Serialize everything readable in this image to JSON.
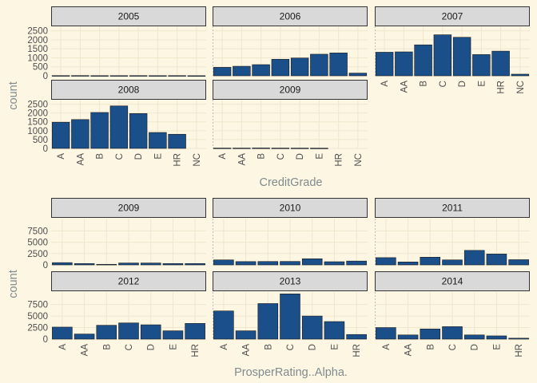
{
  "colors": {
    "background": "#fdf6e3",
    "panel_background": "#fdf6e3",
    "grid": "#efe6cc",
    "strip_fill": "#d9d9d9",
    "strip_border": "#333333",
    "bar_fill": "#1a4f8a",
    "bar_stroke": "#1a1a1a",
    "axis_title": "#7f8b8f",
    "tick_text": "#4d4d4d"
  },
  "chart_data": [
    {
      "type": "bar",
      "facet_layout": "wrap 3 columns",
      "xlabel": "CreditGrade",
      "ylabel": "count",
      "categories": [
        "A",
        "AA",
        "B",
        "C",
        "D",
        "E",
        "HR",
        "NC"
      ],
      "ylim": [
        0,
        2750
      ],
      "yticks": [
        0,
        500,
        1000,
        1500,
        2000,
        2500
      ],
      "grid": true,
      "panels": [
        {
          "label": "2005",
          "values": [
            10,
            12,
            8,
            9,
            10,
            8,
            10,
            5
          ]
        },
        {
          "label": "2006",
          "values": [
            470,
            530,
            620,
            920,
            990,
            1200,
            1270,
            150
          ]
        },
        {
          "label": "2007",
          "values": [
            1310,
            1330,
            1720,
            2280,
            2140,
            1180,
            1370,
            90
          ]
        },
        {
          "label": "2008",
          "values": [
            1480,
            1630,
            2030,
            2400,
            1970,
            900,
            800,
            0
          ]
        },
        {
          "label": "2009",
          "values": [
            20,
            20,
            25,
            20,
            18,
            15,
            0,
            0
          ]
        }
      ]
    },
    {
      "type": "bar",
      "facet_layout": "wrap 3 columns",
      "xlabel": "ProsperRating..Alpha.",
      "ylabel": "count",
      "categories": [
        "A",
        "AA",
        "B",
        "C",
        "D",
        "E",
        "HR"
      ],
      "ylim": [
        0,
        10200
      ],
      "yticks": [
        0,
        2500,
        5000,
        7500
      ],
      "grid": true,
      "panels": [
        {
          "label": "2009",
          "values": [
            500,
            300,
            130,
            420,
            420,
            300,
            300
          ]
        },
        {
          "label": "2010",
          "values": [
            1100,
            730,
            750,
            760,
            1350,
            700,
            850
          ]
        },
        {
          "label": "2011",
          "values": [
            1600,
            650,
            1700,
            1100,
            3200,
            2400,
            1150
          ]
        },
        {
          "label": "2012",
          "values": [
            2600,
            1100,
            3000,
            3500,
            3100,
            1800,
            3400
          ]
        },
        {
          "label": "2013",
          "values": [
            6100,
            1800,
            7700,
            9800,
            5000,
            3800,
            1000
          ]
        },
        {
          "label": "2014",
          "values": [
            2500,
            900,
            2200,
            2700,
            900,
            700,
            200
          ]
        }
      ]
    }
  ]
}
